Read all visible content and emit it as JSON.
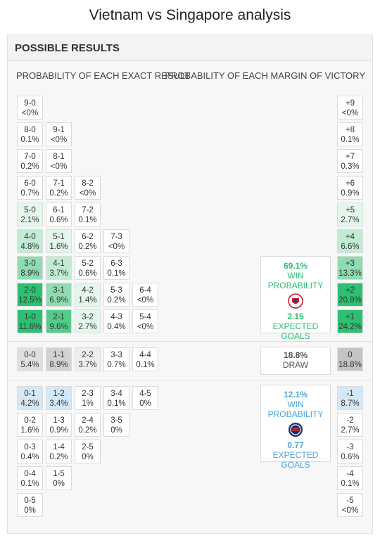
{
  "page": {
    "title": "Vietnam vs Singapore analysis"
  },
  "panel": {
    "title": "POSSIBLE RESULTS",
    "left_heading": "PROBABILITY OF EACH EXACT RESULT",
    "right_heading": "PROBABILITY OF EACH MARGIN OF VICTORY"
  },
  "colors": {
    "vietnam": "#2fbf71",
    "singapore": "#4aa3df",
    "draw": "#9e9e9e"
  },
  "home_results": [
    {
      "score": "9-0",
      "prob": "<0%",
      "row": 0,
      "col": 0,
      "level": 0
    },
    {
      "score": "8-0",
      "prob": "0.1%",
      "row": 1,
      "col": 0,
      "level": 0
    },
    {
      "score": "9-1",
      "prob": "<0%",
      "row": 1,
      "col": 1,
      "level": 0
    },
    {
      "score": "7-0",
      "prob": "0.2%",
      "row": 2,
      "col": 0,
      "level": 0
    },
    {
      "score": "8-1",
      "prob": "<0%",
      "row": 2,
      "col": 1,
      "level": 0
    },
    {
      "score": "6-0",
      "prob": "0.7%",
      "row": 3,
      "col": 0,
      "level": 0
    },
    {
      "score": "7-1",
      "prob": "0.2%",
      "row": 3,
      "col": 1,
      "level": 0
    },
    {
      "score": "8-2",
      "prob": "<0%",
      "row": 3,
      "col": 2,
      "level": 0
    },
    {
      "score": "5-0",
      "prob": "2.1%",
      "row": 4,
      "col": 0,
      "level": 1
    },
    {
      "score": "6-1",
      "prob": "0.6%",
      "row": 4,
      "col": 1,
      "level": 0
    },
    {
      "score": "7-2",
      "prob": "0.1%",
      "row": 4,
      "col": 2,
      "level": 0
    },
    {
      "score": "4-0",
      "prob": "4.8%",
      "row": 5,
      "col": 0,
      "level": 2
    },
    {
      "score": "5-1",
      "prob": "1.6%",
      "row": 5,
      "col": 1,
      "level": 1
    },
    {
      "score": "6-2",
      "prob": "0.2%",
      "row": 5,
      "col": 2,
      "level": 0
    },
    {
      "score": "7-3",
      "prob": "<0%",
      "row": 5,
      "col": 3,
      "level": 0
    },
    {
      "score": "3-0",
      "prob": "8.9%",
      "row": 6,
      "col": 0,
      "level": 3
    },
    {
      "score": "4-1",
      "prob": "3.7%",
      "row": 6,
      "col": 1,
      "level": 2
    },
    {
      "score": "5-2",
      "prob": "0.6%",
      "row": 6,
      "col": 2,
      "level": 0
    },
    {
      "score": "6-3",
      "prob": "0.1%",
      "row": 6,
      "col": 3,
      "level": 0
    },
    {
      "score": "2-0",
      "prob": "12.5%",
      "row": 7,
      "col": 0,
      "level": 5
    },
    {
      "score": "3-1",
      "prob": "6.9%",
      "row": 7,
      "col": 1,
      "level": 3
    },
    {
      "score": "4-2",
      "prob": "1.4%",
      "row": 7,
      "col": 2,
      "level": 1
    },
    {
      "score": "5-3",
      "prob": "0.2%",
      "row": 7,
      "col": 3,
      "level": 0
    },
    {
      "score": "6-4",
      "prob": "<0%",
      "row": 7,
      "col": 4,
      "level": 0
    },
    {
      "score": "1-0",
      "prob": "11.6%",
      "row": 8,
      "col": 0,
      "level": 5
    },
    {
      "score": "2-1",
      "prob": "9.6%",
      "row": 8,
      "col": 1,
      "level": 4
    },
    {
      "score": "3-2",
      "prob": "2.7%",
      "row": 8,
      "col": 2,
      "level": 1
    },
    {
      "score": "4-3",
      "prob": "0.4%",
      "row": 8,
      "col": 3,
      "level": 0
    },
    {
      "score": "5-4",
      "prob": "<0%",
      "row": 8,
      "col": 4,
      "level": 0
    }
  ],
  "draw_results": [
    {
      "score": "0-0",
      "prob": "5.4%",
      "col": 0,
      "level": 2
    },
    {
      "score": "1-1",
      "prob": "8.9%",
      "col": 1,
      "level": 3
    },
    {
      "score": "2-2",
      "prob": "3.7%",
      "col": 2,
      "level": 1
    },
    {
      "score": "3-3",
      "prob": "0.7%",
      "col": 3,
      "level": 0
    },
    {
      "score": "4-4",
      "prob": "0.1%",
      "col": 4,
      "level": 0
    }
  ],
  "away_results": [
    {
      "score": "0-1",
      "prob": "4.2%",
      "row": 0,
      "col": 0,
      "level": 2
    },
    {
      "score": "1-2",
      "prob": "3.4%",
      "row": 0,
      "col": 1,
      "level": 2
    },
    {
      "score": "2-3",
      "prob": "1%",
      "row": 0,
      "col": 2,
      "level": 0
    },
    {
      "score": "3-4",
      "prob": "0.1%",
      "row": 0,
      "col": 3,
      "level": 0
    },
    {
      "score": "4-5",
      "prob": "0%",
      "row": 0,
      "col": 4,
      "level": 0
    },
    {
      "score": "0-2",
      "prob": "1.6%",
      "row": 1,
      "col": 0,
      "level": 0
    },
    {
      "score": "1-3",
      "prob": "0.9%",
      "row": 1,
      "col": 1,
      "level": 0
    },
    {
      "score": "2-4",
      "prob": "0.2%",
      "row": 1,
      "col": 2,
      "level": 0
    },
    {
      "score": "3-5",
      "prob": "0%",
      "row": 1,
      "col": 3,
      "level": 0
    },
    {
      "score": "0-3",
      "prob": "0.4%",
      "row": 2,
      "col": 0,
      "level": 0
    },
    {
      "score": "1-4",
      "prob": "0.2%",
      "row": 2,
      "col": 1,
      "level": 0
    },
    {
      "score": "2-5",
      "prob": "0%",
      "row": 2,
      "col": 2,
      "level": 0
    },
    {
      "score": "0-4",
      "prob": "0.1%",
      "row": 3,
      "col": 0,
      "level": 0
    },
    {
      "score": "1-5",
      "prob": "0%",
      "row": 3,
      "col": 1,
      "level": 0
    },
    {
      "score": "0-5",
      "prob": "0%",
      "row": 4,
      "col": 0,
      "level": 0
    }
  ],
  "home_margins": [
    {
      "margin": "+9",
      "prob": "<0%",
      "level": 0
    },
    {
      "margin": "+8",
      "prob": "0.1%",
      "level": 0
    },
    {
      "margin": "+7",
      "prob": "0.3%",
      "level": 0
    },
    {
      "margin": "+6",
      "prob": "0.9%",
      "level": 0
    },
    {
      "margin": "+5",
      "prob": "2.7%",
      "level": 1
    },
    {
      "margin": "+4",
      "prob": "6.6%",
      "level": 2
    },
    {
      "margin": "+3",
      "prob": "13.3%",
      "level": 3
    },
    {
      "margin": "+2",
      "prob": "20.9%",
      "level": 5
    },
    {
      "margin": "+1",
      "prob": "24.2%",
      "level": 5
    }
  ],
  "draw_margin": {
    "margin": "0",
    "prob": "18.8%",
    "level": 4
  },
  "away_margins": [
    {
      "margin": "-1",
      "prob": "8.7%",
      "level": 2
    },
    {
      "margin": "-2",
      "prob": "2.7%",
      "level": 0
    },
    {
      "margin": "-3",
      "prob": "0.6%",
      "level": 0
    },
    {
      "margin": "-4",
      "prob": "0.1%",
      "level": 0
    },
    {
      "margin": "-5",
      "prob": "<0%",
      "level": 0
    }
  ],
  "summary": {
    "home": {
      "win_pct": "69.1%",
      "win_label": "WIN PROBABILITY",
      "goals": "2.15",
      "goals_label": "EXPECTED GOALS"
    },
    "draw": {
      "pct": "18.8%",
      "label": "DRAW"
    },
    "away": {
      "win_pct": "12.1%",
      "win_label": "WIN PROBABILITY",
      "goals": "0.77",
      "goals_label": "EXPECTED GOALS"
    }
  }
}
